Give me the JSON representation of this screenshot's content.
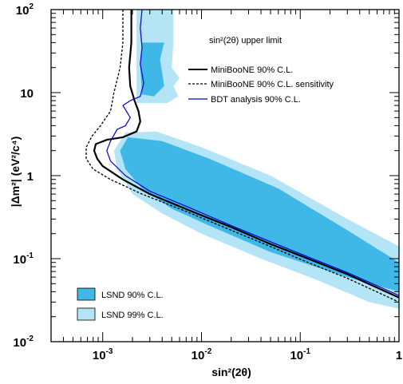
{
  "chart_data": {
    "type": "line",
    "xscale": "log",
    "yscale": "log",
    "xlim": [
      0.0003,
      1
    ],
    "ylim": [
      0.01,
      100
    ],
    "xlabel": "sin²(2θ)",
    "ylabel": "|Δm²| (eV²/c⁴)",
    "grid": false,
    "x_ticks": [
      {
        "value": 0.001,
        "base": "10",
        "exp": "-3"
      },
      {
        "value": 0.01,
        "base": "10",
        "exp": "-2"
      },
      {
        "value": 0.1,
        "base": "10",
        "exp": "-1"
      },
      {
        "value": 1,
        "base": "1",
        "exp": ""
      }
    ],
    "y_ticks": [
      {
        "value": 0.01,
        "base": "10",
        "exp": "-2"
      },
      {
        "value": 0.1,
        "base": "10",
        "exp": "-1"
      },
      {
        "value": 1,
        "base": "1",
        "exp": ""
      },
      {
        "value": 10,
        "base": "10",
        "exp": ""
      },
      {
        "value": 100,
        "base": "10",
        "exp": "2"
      }
    ],
    "legend_title": "sin²(2θ) upper limit",
    "legend_position": "top-right",
    "series": [
      {
        "name": "MiniBooNE 90% C.L.",
        "color": "#000000",
        "style": "solid",
        "width": 2.2,
        "points": [
          [
            0.00195,
            100
          ],
          [
            0.00195,
            40
          ],
          [
            0.00185,
            20
          ],
          [
            0.0019,
            12
          ],
          [
            0.0021,
            8
          ],
          [
            0.0023,
            6
          ],
          [
            0.0024,
            4.5
          ],
          [
            0.0022,
            3.4
          ],
          [
            0.0016,
            2.9
          ],
          [
            0.0011,
            2.7
          ],
          [
            0.00085,
            2.4
          ],
          [
            0.00082,
            2.0
          ],
          [
            0.00088,
            1.6
          ],
          [
            0.001,
            1.3
          ],
          [
            0.0016,
            0.9
          ],
          [
            0.003,
            0.6
          ],
          [
            0.008,
            0.37
          ],
          [
            0.02,
            0.24
          ],
          [
            0.05,
            0.15
          ],
          [
            0.12,
            0.1
          ],
          [
            0.3,
            0.065
          ],
          [
            1,
            0.034
          ]
        ]
      },
      {
        "name": "MiniBooNE 90% C.L. sensitivity",
        "color": "#000000",
        "style": "dashed",
        "width": 1.3,
        "points": [
          [
            0.0016,
            100
          ],
          [
            0.0016,
            40
          ],
          [
            0.0015,
            20
          ],
          [
            0.0013,
            10
          ],
          [
            0.0012,
            6
          ],
          [
            0.00095,
            4
          ],
          [
            0.00078,
            3
          ],
          [
            0.00068,
            2.2
          ],
          [
            0.00068,
            1.6
          ],
          [
            0.0008,
            1.2
          ],
          [
            0.0012,
            0.9
          ],
          [
            0.0025,
            0.6
          ],
          [
            0.007,
            0.37
          ],
          [
            0.02,
            0.22
          ],
          [
            0.05,
            0.14
          ],
          [
            0.12,
            0.09
          ],
          [
            0.3,
            0.058
          ],
          [
            1,
            0.03
          ]
        ]
      },
      {
        "name": "BDT analysis 90% C.L.",
        "color": "#0000cc",
        "style": "solid",
        "width": 1.2,
        "points": [
          [
            0.0025,
            100
          ],
          [
            0.0024,
            60
          ],
          [
            0.0025,
            35
          ],
          [
            0.0024,
            22
          ],
          [
            0.0026,
            13
          ],
          [
            0.0024,
            9
          ],
          [
            0.0019,
            8
          ],
          [
            0.0016,
            7
          ],
          [
            0.0019,
            5
          ],
          [
            0.0017,
            4
          ],
          [
            0.0014,
            3.6
          ],
          [
            0.0012,
            2.6
          ],
          [
            0.0011,
            2.0
          ],
          [
            0.0012,
            1.5
          ],
          [
            0.0017,
            1.0
          ],
          [
            0.003,
            0.65
          ],
          [
            0.008,
            0.4
          ],
          [
            0.02,
            0.25
          ],
          [
            0.05,
            0.16
          ],
          [
            0.12,
            0.105
          ],
          [
            0.3,
            0.068
          ],
          [
            1,
            0.036
          ]
        ]
      }
    ],
    "regions": [
      {
        "name": "LSND 99% C.L.",
        "color": "#b3e5f7",
        "polygons": [
          [
            [
              0.0022,
              100
            ],
            [
              0.0052,
              100
            ],
            [
              0.0052,
              40
            ],
            [
              0.005,
              20
            ],
            [
              0.006,
              15
            ],
            [
              0.0052,
              12
            ],
            [
              0.0058,
              9
            ],
            [
              0.0045,
              7.5
            ],
            [
              0.0022,
              7.5
            ],
            [
              0.0022,
              20
            ]
          ],
          [
            [
              0.0017,
              3.3
            ],
            [
              0.0035,
              3.4
            ],
            [
              0.01,
              2.2
            ],
            [
              0.05,
              1.0
            ],
            [
              0.3,
              0.3
            ],
            [
              1,
              0.14
            ],
            [
              1,
              0.025
            ],
            [
              0.5,
              0.03
            ],
            [
              0.15,
              0.055
            ],
            [
              0.04,
              0.1
            ],
            [
              0.01,
              0.2
            ],
            [
              0.004,
              0.35
            ],
            [
              0.002,
              0.6
            ],
            [
              0.0014,
              1.2
            ],
            [
              0.0013,
              2.0
            ]
          ]
        ]
      },
      {
        "name": "LSND 90% C.L.",
        "color": "#3fb8e8",
        "polygons": [
          [
            [
              0.0025,
              40
            ],
            [
              0.0042,
              40
            ],
            [
              0.0038,
              25
            ],
            [
              0.0042,
              12
            ],
            [
              0.0033,
              9
            ],
            [
              0.0025,
              9.5
            ],
            [
              0.0024,
              20
            ]
          ],
          [
            [
              0.0018,
              2.9
            ],
            [
              0.004,
              2.6
            ],
            [
              0.012,
              1.6
            ],
            [
              0.06,
              0.7
            ],
            [
              0.3,
              0.22
            ],
            [
              1,
              0.09
            ],
            [
              1,
              0.04
            ],
            [
              0.3,
              0.06
            ],
            [
              0.05,
              0.12
            ],
            [
              0.012,
              0.25
            ],
            [
              0.005,
              0.4
            ],
            [
              0.0025,
              0.7
            ],
            [
              0.0017,
              1.2
            ],
            [
              0.0015,
              2.0
            ]
          ]
        ]
      }
    ]
  }
}
